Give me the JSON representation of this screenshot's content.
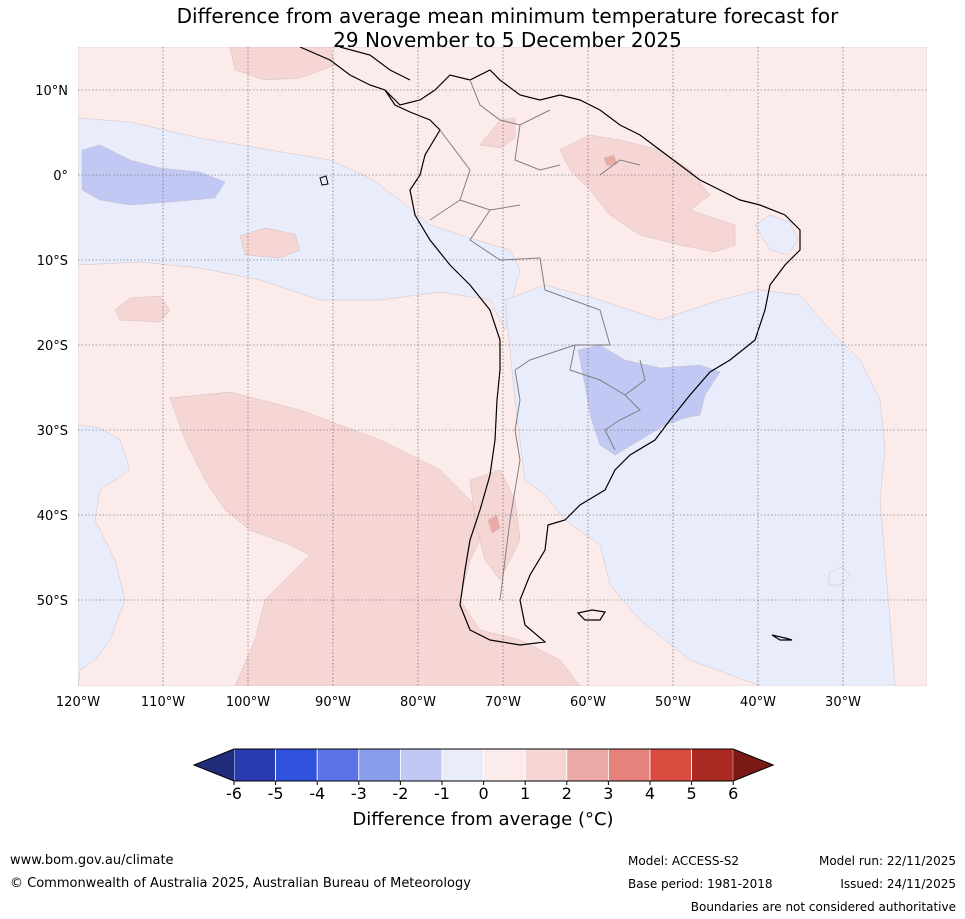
{
  "title": {
    "line1": "Difference from average mean minimum temperature forecast for",
    "line2": "29 November to 5 December 2025"
  },
  "map": {
    "lat_labels": [
      "10°N",
      "0°",
      "10°S",
      "20°S",
      "30°S",
      "40°S",
      "50°S"
    ],
    "lon_labels": [
      "120°W",
      "110°W",
      "100°W",
      "90°W",
      "80°W",
      "70°W",
      "60°W",
      "50°W",
      "40°W",
      "30°W"
    ],
    "lat_values": [
      10,
      0,
      -10,
      -20,
      -30,
      -40,
      -50
    ],
    "lon_values": [
      -120,
      -110,
      -100,
      -90,
      -80,
      -70,
      -60,
      -50,
      -40,
      -30
    ]
  },
  "colorbar": {
    "ticks": [
      "-6",
      "-5",
      "-4",
      "-3",
      "-2",
      "-1",
      "0",
      "1",
      "2",
      "3",
      "4",
      "5",
      "6"
    ],
    "colors": [
      "#2a3bb0",
      "#2f52df",
      "#5a74e6",
      "#8a9cec",
      "#c0c8f3",
      "#e9ecfb",
      "#fcebeb",
      "#f6d5d5",
      "#ecaaa7",
      "#e5827c",
      "#da4b40",
      "#aa2a21"
    ],
    "under_color": "#1f2d7a",
    "over_color": "#7a1a16",
    "label": "Difference from average (°C)"
  },
  "colors": {
    "pale_red": "#fcebeb",
    "light_red": "#f6d5d5",
    "pale_blue": "#e9ecfb",
    "light_blue": "#c0c8f3",
    "mid_red": "#ecaaa7"
  },
  "footer": {
    "url": "www.bom.gov.au/climate",
    "copyright": "© Commonwealth of Australia 2025, Australian Bureau of Meteorology",
    "model": "Model: ACCESS-S2",
    "model_run": "Model run: 22/11/2025",
    "base_period": "Base period: 1981-2018",
    "issued": "Issued: 24/11/2025",
    "disclaimer": "Boundaries are not considered authoritative"
  }
}
